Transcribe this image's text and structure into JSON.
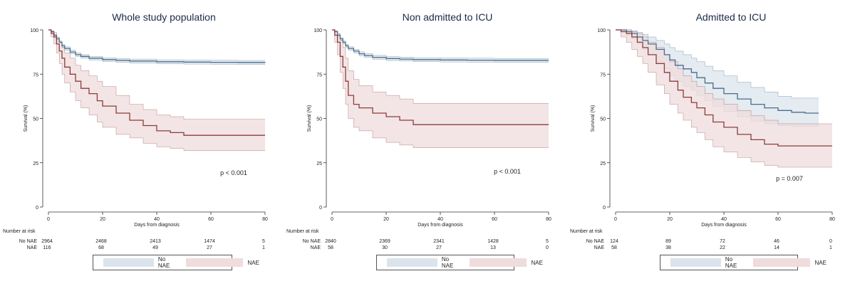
{
  "colors": {
    "no_nae_line": "#4a6c8c",
    "no_nae_band": "#dbe4ec",
    "nae_line": "#8c3c3c",
    "nae_band": "#efdcdc",
    "axis": "#333333"
  },
  "risk_header": "Number at risk",
  "chart_data": [
    {
      "type": "line",
      "title": "Whole study population",
      "xlabel": "Days from diagnosis",
      "ylabel": "Survival (%)",
      "xlim": [
        0,
        80
      ],
      "ylim": [
        0,
        100
      ],
      "xticks": [
        0,
        20,
        40,
        60,
        80
      ],
      "yticks": [
        0,
        25,
        50,
        75,
        100
      ],
      "annotation": "p < 0.001",
      "series": [
        {
          "name": "No NAE",
          "x": [
            0,
            1,
            2,
            3,
            4,
            5,
            6,
            8,
            10,
            12,
            15,
            20,
            25,
            30,
            40,
            50,
            60,
            70,
            80
          ],
          "y": [
            100,
            99,
            97,
            95,
            93,
            91,
            89.5,
            87.5,
            86,
            85,
            84,
            83.2,
            82.8,
            82.4,
            82,
            81.8,
            81.7,
            81.6,
            81.5
          ],
          "lower": [
            100,
            98.6,
            96.5,
            94.3,
            92.2,
            90.2,
            88.6,
            86.5,
            85,
            84,
            83,
            82.2,
            81.7,
            81.3,
            80.9,
            80.7,
            80.6,
            80.5,
            80.4
          ],
          "upper": [
            100,
            99.4,
            97.5,
            95.7,
            93.8,
            91.8,
            90.4,
            88.5,
            87,
            86,
            85,
            84.2,
            83.9,
            83.5,
            83.1,
            82.9,
            82.8,
            82.7,
            82.6
          ]
        },
        {
          "name": "NAE",
          "x": [
            0,
            1,
            2,
            3,
            4,
            5,
            6,
            8,
            10,
            12,
            15,
            18,
            20,
            25,
            30,
            35,
            40,
            45,
            50,
            60,
            70,
            80
          ],
          "y": [
            100,
            98,
            96,
            92,
            88,
            84,
            79,
            75,
            71,
            67,
            64,
            60,
            57,
            53,
            49,
            46,
            43,
            42,
            40.5,
            40.5,
            40.5,
            40.5
          ],
          "lower": [
            100,
            96,
            92,
            87,
            81,
            75,
            70,
            65,
            60,
            56,
            52,
            48,
            45,
            41,
            39,
            36,
            34,
            33,
            31.8,
            31.8,
            31.8,
            31.8
          ],
          "upper": [
            100,
            99.5,
            98.5,
            96,
            93,
            90,
            87,
            84,
            80,
            77,
            74,
            71,
            68,
            63,
            58,
            55,
            52,
            51,
            49.5,
            49.5,
            49.5,
            49.5
          ]
        }
      ],
      "risk_table": {
        "times": [
          0,
          20,
          40,
          60,
          80
        ],
        "rows": [
          {
            "label": "No NAE",
            "values": [
              "2964",
              "2468",
              "2413",
              "1474",
              "5"
            ]
          },
          {
            "label": "NAE",
            "values": [
              "116",
              "68",
              "49",
              "27",
              "1"
            ]
          }
        ]
      }
    },
    {
      "type": "line",
      "title": "Non admitted to ICU",
      "xlabel": "Days from diagnosis",
      "ylabel": "Survival (%)",
      "xlim": [
        0,
        80
      ],
      "ylim": [
        0,
        100
      ],
      "xticks": [
        0,
        20,
        40,
        60,
        80
      ],
      "yticks": [
        0,
        25,
        50,
        75,
        100
      ],
      "annotation": "p < 0.001",
      "series": [
        {
          "name": "No NAE",
          "x": [
            0,
            1,
            2,
            3,
            4,
            5,
            6,
            8,
            10,
            12,
            15,
            20,
            25,
            30,
            40,
            50,
            60,
            70,
            80
          ],
          "y": [
            100,
            99,
            97,
            95,
            93,
            91,
            89.5,
            88,
            86.5,
            85.5,
            84.5,
            83.8,
            83.5,
            83.2,
            83,
            82.9,
            82.8,
            82.8,
            82.8
          ],
          "lower": [
            100,
            98.6,
            96.5,
            94.3,
            92.2,
            90.2,
            88.6,
            87,
            85.4,
            84.4,
            83.4,
            82.7,
            82.4,
            82.1,
            81.9,
            81.8,
            81.7,
            81.7,
            81.7
          ],
          "upper": [
            100,
            99.4,
            97.5,
            95.7,
            93.8,
            91.8,
            90.4,
            89,
            87.6,
            86.6,
            85.6,
            84.9,
            84.6,
            84.3,
            84.1,
            84,
            83.9,
            83.9,
            83.9
          ]
        },
        {
          "name": "NAE",
          "x": [
            0,
            1,
            2,
            3,
            4,
            5,
            6,
            8,
            10,
            15,
            20,
            25,
            30,
            40,
            60,
            80
          ],
          "y": [
            100,
            97,
            93,
            85,
            79,
            71,
            63,
            58,
            56,
            53,
            51,
            49,
            46.5,
            46.5,
            46.5,
            46.5
          ],
          "lower": [
            100,
            93,
            86,
            76,
            67,
            58,
            50,
            45,
            43,
            39,
            36.5,
            35,
            33.5,
            33.5,
            33.5,
            33.5
          ],
          "upper": [
            100,
            99.5,
            98,
            94,
            90,
            84,
            77,
            72,
            68.5,
            65,
            63,
            61,
            58.5,
            58.5,
            58.5,
            58.5
          ]
        }
      ],
      "risk_table": {
        "times": [
          0,
          20,
          40,
          60,
          80
        ],
        "rows": [
          {
            "label": "No NAE",
            "values": [
              "2840",
              "2369",
              "2341",
              "1428",
              "5"
            ]
          },
          {
            "label": "NAE",
            "values": [
              "58",
              "30",
              "27",
              "13",
              "0"
            ]
          }
        ]
      }
    },
    {
      "type": "line",
      "title": "Admitted to ICU",
      "xlabel": "Days from diagnosis",
      "ylabel": "Survival (%)",
      "xlim": [
        0,
        80
      ],
      "ylim": [
        0,
        100
      ],
      "xticks": [
        0,
        20,
        40,
        60,
        80
      ],
      "yticks": [
        0,
        25,
        50,
        75,
        100
      ],
      "annotation": "p = 0.007",
      "series": [
        {
          "name": "No NAE",
          "x": [
            0,
            2,
            4,
            6,
            8,
            10,
            12,
            15,
            18,
            20,
            22,
            25,
            28,
            30,
            33,
            36,
            40,
            45,
            50,
            55,
            60,
            65,
            70,
            75
          ],
          "y": [
            100,
            100,
            99,
            98,
            96,
            94,
            92,
            89,
            86,
            83,
            80,
            78,
            76,
            73,
            70,
            67,
            64,
            61,
            58,
            56,
            54.5,
            53.5,
            53,
            53
          ],
          "lower": [
            100,
            99,
            97,
            95,
            92,
            89,
            86,
            82,
            78,
            74,
            71,
            68,
            66,
            63,
            60,
            57,
            54,
            51,
            48.5,
            47,
            46,
            45.5,
            45.5,
            45.5
          ],
          "upper": [
            100,
            100,
            100,
            99.5,
            98.5,
            97.5,
            96,
            94,
            92,
            90,
            88,
            86,
            84,
            82,
            79.5,
            77,
            74,
            70.5,
            67.5,
            65,
            62.5,
            61.5,
            61.5,
            61.5
          ]
        },
        {
          "name": "NAE",
          "x": [
            0,
            2,
            4,
            6,
            8,
            10,
            12,
            15,
            18,
            20,
            23,
            25,
            28,
            30,
            33,
            36,
            40,
            45,
            50,
            55,
            60,
            70,
            80
          ],
          "y": [
            100,
            99,
            98,
            96,
            93,
            90,
            86,
            81,
            76,
            71,
            66,
            62,
            59,
            56,
            52,
            48,
            45,
            41,
            38,
            35.5,
            34.5,
            34.5,
            34.5
          ],
          "lower": [
            100,
            96,
            93,
            89,
            85,
            81,
            76,
            69,
            64,
            58,
            53,
            49,
            45,
            42,
            38,
            34,
            31,
            28,
            25.5,
            23.5,
            22.5,
            22.5,
            22.5
          ],
          "upper": [
            100,
            100,
            100,
            99,
            98,
            96,
            93,
            90,
            86,
            82,
            78,
            74,
            71,
            68,
            64,
            61,
            58,
            54.5,
            51.5,
            49,
            47,
            47,
            47
          ]
        }
      ],
      "risk_table": {
        "times": [
          0,
          20,
          40,
          60,
          80
        ],
        "rows": [
          {
            "label": "No NAE",
            "values": [
              "124",
              "89",
              "72",
              "46",
              "0"
            ]
          },
          {
            "label": "NAE",
            "values": [
              "58",
              "38",
              "22",
              "14",
              "1"
            ]
          }
        ]
      }
    }
  ]
}
